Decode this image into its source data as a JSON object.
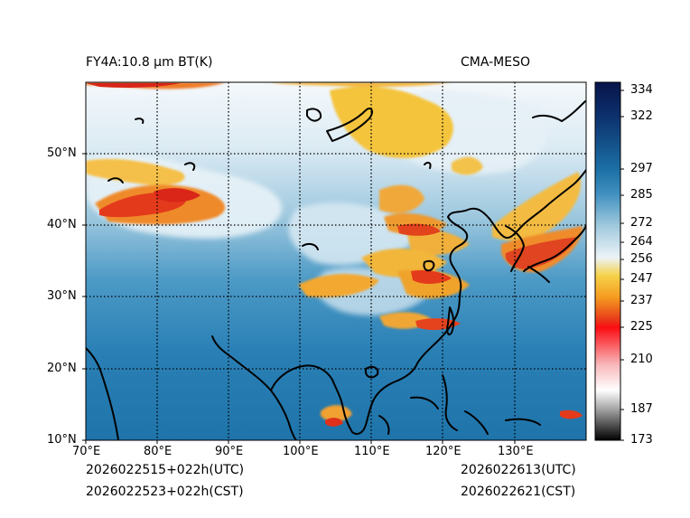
{
  "title_left": "FY4A:10.8 μm BT(K)",
  "title_right": "CMA-MESO",
  "lon_labels": [
    "70°E",
    "80°E",
    "90°E",
    "100°E",
    "110°E",
    "120°E",
    "130°E"
  ],
  "lat_labels": [
    "10°N",
    "20°N",
    "30°N",
    "40°N",
    "50°N"
  ],
  "colorbar_labels": [
    "334",
    "322",
    "297",
    "285",
    "272",
    "264",
    "256",
    "247",
    "237",
    "225",
    "210",
    "187",
    "173"
  ],
  "time_utc_left": "2026022515+022h(UTC)",
  "time_cst_left": "2026022523+022h(CST)",
  "time_utc_right": "2026022613(UTC)",
  "time_cst_right": "2026022621(CST)",
  "colors": {
    "ocean": "#1e7bb0",
    "land_clear": "#4d9cc8",
    "cloud_mid": "#cfe5f0",
    "cloud_cold": "#f2b92e",
    "cloud_very_cold": "#e4321c",
    "coast": "#000000"
  }
}
